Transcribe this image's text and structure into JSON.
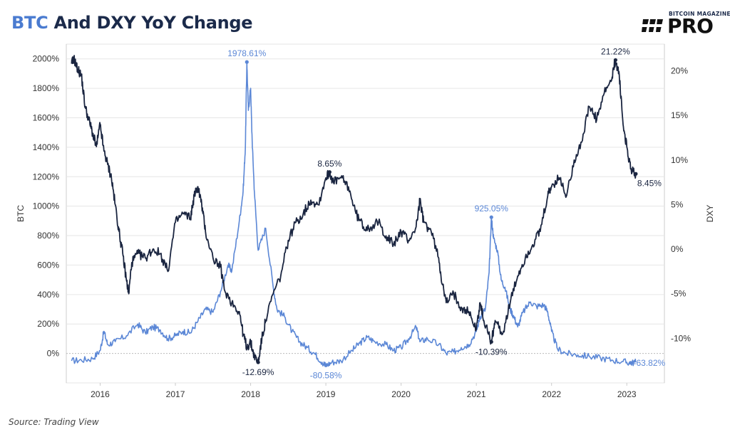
{
  "header": {
    "title_highlight": "BTC",
    "title_rest": " And DXY YoY Change",
    "logo_small": "BITCOIN MAGAZINE",
    "logo_big": "PRO",
    "logo_icon": "bitcoin-magazine-logo-icon"
  },
  "footer": {
    "source": "Source: Trading View"
  },
  "colors": {
    "btc": "#5b87d6",
    "dxy": "#1a2540",
    "grid": "#e6e6e6",
    "axis_text": "#333333",
    "zero_line": "#bbbbbb"
  },
  "chart_data": {
    "type": "line",
    "title": "BTC And DXY YoY Change",
    "xlabel": "",
    "ylabel_left": "BTC",
    "ylabel_right": "DXY",
    "grid": true,
    "x_ticks": [
      "2016",
      "2017",
      "2018",
      "2019",
      "2020",
      "2021",
      "2022",
      "2023"
    ],
    "xlim": [
      2015.55,
      2023.5
    ],
    "ylim_left": [
      -200,
      2100
    ],
    "y_ticks_left": [
      0,
      200,
      400,
      600,
      800,
      1000,
      1200,
      1400,
      1600,
      1800,
      2000
    ],
    "ylim_right": [
      -15,
      23
    ],
    "y_ticks_right": [
      -10,
      -5,
      0,
      5,
      10,
      15,
      20
    ],
    "series": [
      {
        "name": "BTC",
        "axis": "left",
        "points": [
          [
            2015.62,
            -50
          ],
          [
            2015.75,
            -45
          ],
          [
            2015.9,
            -35
          ],
          [
            2016.0,
            20
          ],
          [
            2016.05,
            150
          ],
          [
            2016.1,
            60
          ],
          [
            2016.2,
            80
          ],
          [
            2016.35,
            120
          ],
          [
            2016.5,
            200
          ],
          [
            2016.6,
            140
          ],
          [
            2016.7,
            180
          ],
          [
            2016.8,
            160
          ],
          [
            2016.9,
            100
          ],
          [
            2017.0,
            120
          ],
          [
            2017.1,
            150
          ],
          [
            2017.2,
            140
          ],
          [
            2017.3,
            220
          ],
          [
            2017.4,
            300
          ],
          [
            2017.5,
            280
          ],
          [
            2017.6,
            420
          ],
          [
            2017.7,
            600
          ],
          [
            2017.75,
            560
          ],
          [
            2017.85,
            900
          ],
          [
            2017.9,
            1100
          ],
          [
            2017.93,
            1400
          ],
          [
            2017.95,
            1978.61
          ],
          [
            2017.97,
            1650
          ],
          [
            2018.0,
            1800
          ],
          [
            2018.02,
            1450
          ],
          [
            2018.05,
            1100
          ],
          [
            2018.1,
            700
          ],
          [
            2018.2,
            850
          ],
          [
            2018.3,
            450
          ],
          [
            2018.35,
            300
          ],
          [
            2018.45,
            250
          ],
          [
            2018.55,
            150
          ],
          [
            2018.65,
            80
          ],
          [
            2018.75,
            40
          ],
          [
            2018.85,
            0
          ],
          [
            2018.95,
            -60
          ],
          [
            2019.0,
            -80.58
          ],
          [
            2019.08,
            -60
          ],
          [
            2019.2,
            -50
          ],
          [
            2019.35,
            20
          ],
          [
            2019.45,
            70
          ],
          [
            2019.55,
            110
          ],
          [
            2019.65,
            80
          ],
          [
            2019.8,
            60
          ],
          [
            2019.9,
            20
          ],
          [
            2020.0,
            40
          ],
          [
            2020.1,
            100
          ],
          [
            2020.2,
            180
          ],
          [
            2020.25,
            80
          ],
          [
            2020.35,
            100
          ],
          [
            2020.5,
            60
          ],
          [
            2020.6,
            0
          ],
          [
            2020.7,
            10
          ],
          [
            2020.8,
            40
          ],
          [
            2020.9,
            60
          ],
          [
            2021.0,
            150
          ],
          [
            2021.05,
            250
          ],
          [
            2021.12,
            300
          ],
          [
            2021.17,
            550
          ],
          [
            2021.2,
            925.05
          ],
          [
            2021.23,
            780
          ],
          [
            2021.28,
            700
          ],
          [
            2021.33,
            500
          ],
          [
            2021.38,
            450
          ],
          [
            2021.45,
            300
          ],
          [
            2021.5,
            250
          ],
          [
            2021.55,
            180
          ],
          [
            2021.62,
            280
          ],
          [
            2021.72,
            350
          ],
          [
            2021.8,
            320
          ],
          [
            2021.9,
            330
          ],
          [
            2021.95,
            280
          ],
          [
            2022.0,
            150
          ],
          [
            2022.08,
            30
          ],
          [
            2022.2,
            0
          ],
          [
            2022.35,
            -10
          ],
          [
            2022.5,
            -20
          ],
          [
            2022.65,
            -30
          ],
          [
            2022.8,
            -45
          ],
          [
            2022.95,
            -55
          ],
          [
            2023.05,
            -63.82
          ],
          [
            2023.12,
            -60
          ]
        ]
      },
      {
        "name": "DXY",
        "axis": "right",
        "points": [
          [
            2015.62,
            20.8
          ],
          [
            2015.65,
            21.4
          ],
          [
            2015.7,
            20.2
          ],
          [
            2015.75,
            19.5
          ],
          [
            2015.8,
            16.0
          ],
          [
            2015.85,
            14.5
          ],
          [
            2015.9,
            13.0
          ],
          [
            2015.95,
            11.5
          ],
          [
            2016.0,
            14.0
          ],
          [
            2016.05,
            11.0
          ],
          [
            2016.1,
            9.5
          ],
          [
            2016.15,
            8.0
          ],
          [
            2016.2,
            5.0
          ],
          [
            2016.25,
            2.0
          ],
          [
            2016.3,
            -0.5
          ],
          [
            2016.35,
            -3.5
          ],
          [
            2016.38,
            -5.0
          ],
          [
            2016.42,
            -1.5
          ],
          [
            2016.5,
            -0.5
          ],
          [
            2016.6,
            -1.0
          ],
          [
            2016.7,
            0.0
          ],
          [
            2016.8,
            -0.5
          ],
          [
            2016.9,
            -2.5
          ],
          [
            2017.0,
            3.0
          ],
          [
            2017.1,
            4.0
          ],
          [
            2017.2,
            3.5
          ],
          [
            2017.25,
            6.0
          ],
          [
            2017.3,
            7.0
          ],
          [
            2017.35,
            5.0
          ],
          [
            2017.4,
            2.0
          ],
          [
            2017.5,
            -1.0
          ],
          [
            2017.6,
            -2.0
          ],
          [
            2017.65,
            -4.5
          ],
          [
            2017.75,
            -6.0
          ],
          [
            2017.85,
            -7.0
          ],
          [
            2017.9,
            -9.5
          ],
          [
            2017.95,
            -11.0
          ],
          [
            2018.0,
            -10.5
          ],
          [
            2018.05,
            -12.0
          ],
          [
            2018.1,
            -12.69
          ],
          [
            2018.15,
            -10.0
          ],
          [
            2018.2,
            -8.0
          ],
          [
            2018.3,
            -5.0
          ],
          [
            2018.4,
            -3.0
          ],
          [
            2018.5,
            1.0
          ],
          [
            2018.6,
            3.0
          ],
          [
            2018.7,
            4.0
          ],
          [
            2018.8,
            5.5
          ],
          [
            2018.9,
            5.0
          ],
          [
            2019.0,
            8.0
          ],
          [
            2019.05,
            8.65
          ],
          [
            2019.1,
            7.5
          ],
          [
            2019.2,
            8.0
          ],
          [
            2019.3,
            7.0
          ],
          [
            2019.4,
            4.0
          ],
          [
            2019.5,
            2.5
          ],
          [
            2019.6,
            2.5
          ],
          [
            2019.7,
            3.0
          ],
          [
            2019.8,
            1.5
          ],
          [
            2019.9,
            0.5
          ],
          [
            2020.0,
            2.0
          ],
          [
            2020.1,
            1.0
          ],
          [
            2020.2,
            2.5
          ],
          [
            2020.25,
            5.5
          ],
          [
            2020.3,
            3.0
          ],
          [
            2020.4,
            2.0
          ],
          [
            2020.5,
            -1.0
          ],
          [
            2020.55,
            -4.0
          ],
          [
            2020.6,
            -6.0
          ],
          [
            2020.7,
            -5.0
          ],
          [
            2020.8,
            -6.5
          ],
          [
            2020.9,
            -7.0
          ],
          [
            2021.0,
            -9.0
          ],
          [
            2021.05,
            -6.0
          ],
          [
            2021.1,
            -8.0
          ],
          [
            2021.2,
            -10.39
          ],
          [
            2021.25,
            -8.0
          ],
          [
            2021.35,
            -9.5
          ],
          [
            2021.45,
            -6.0
          ],
          [
            2021.55,
            -3.0
          ],
          [
            2021.65,
            -1.0
          ],
          [
            2021.75,
            0.5
          ],
          [
            2021.85,
            2.0
          ],
          [
            2021.95,
            6.0
          ],
          [
            2022.0,
            7.0
          ],
          [
            2022.1,
            8.0
          ],
          [
            2022.2,
            6.0
          ],
          [
            2022.3,
            10.0
          ],
          [
            2022.4,
            12.0
          ],
          [
            2022.5,
            16.0
          ],
          [
            2022.6,
            14.5
          ],
          [
            2022.7,
            17.5
          ],
          [
            2022.8,
            19.0
          ],
          [
            2022.85,
            21.22
          ],
          [
            2022.9,
            19.5
          ],
          [
            2022.95,
            14.0
          ],
          [
            2023.0,
            11.5
          ],
          [
            2023.05,
            9.0
          ],
          [
            2023.12,
            8.45
          ]
        ]
      }
    ],
    "annotations": [
      {
        "series": "BTC",
        "x": 2017.95,
        "y": 1978.61,
        "text": "1978.61%",
        "placement": "above"
      },
      {
        "series": "BTC",
        "x": 2019.0,
        "y": -80.58,
        "text": "-80.58%",
        "placement": "below"
      },
      {
        "series": "BTC",
        "x": 2021.2,
        "y": 925.05,
        "text": "925.05%",
        "placement": "above"
      },
      {
        "series": "BTC",
        "x": 2023.05,
        "y": -63.82,
        "text": "-63.82%",
        "placement": "right"
      },
      {
        "series": "DXY",
        "x": 2018.1,
        "y": -12.69,
        "text": "-12.69%",
        "placement": "below"
      },
      {
        "series": "DXY",
        "x": 2019.05,
        "y": 8.65,
        "text": "8.65%",
        "placement": "above"
      },
      {
        "series": "DXY",
        "x": 2021.2,
        "y": -10.39,
        "text": "-10.39%",
        "placement": "below"
      },
      {
        "series": "DXY",
        "x": 2022.85,
        "y": 21.22,
        "text": "21.22%",
        "placement": "above"
      },
      {
        "series": "DXY",
        "x": 2023.12,
        "y": 8.45,
        "text": "8.45%",
        "placement": "below-right"
      }
    ]
  }
}
